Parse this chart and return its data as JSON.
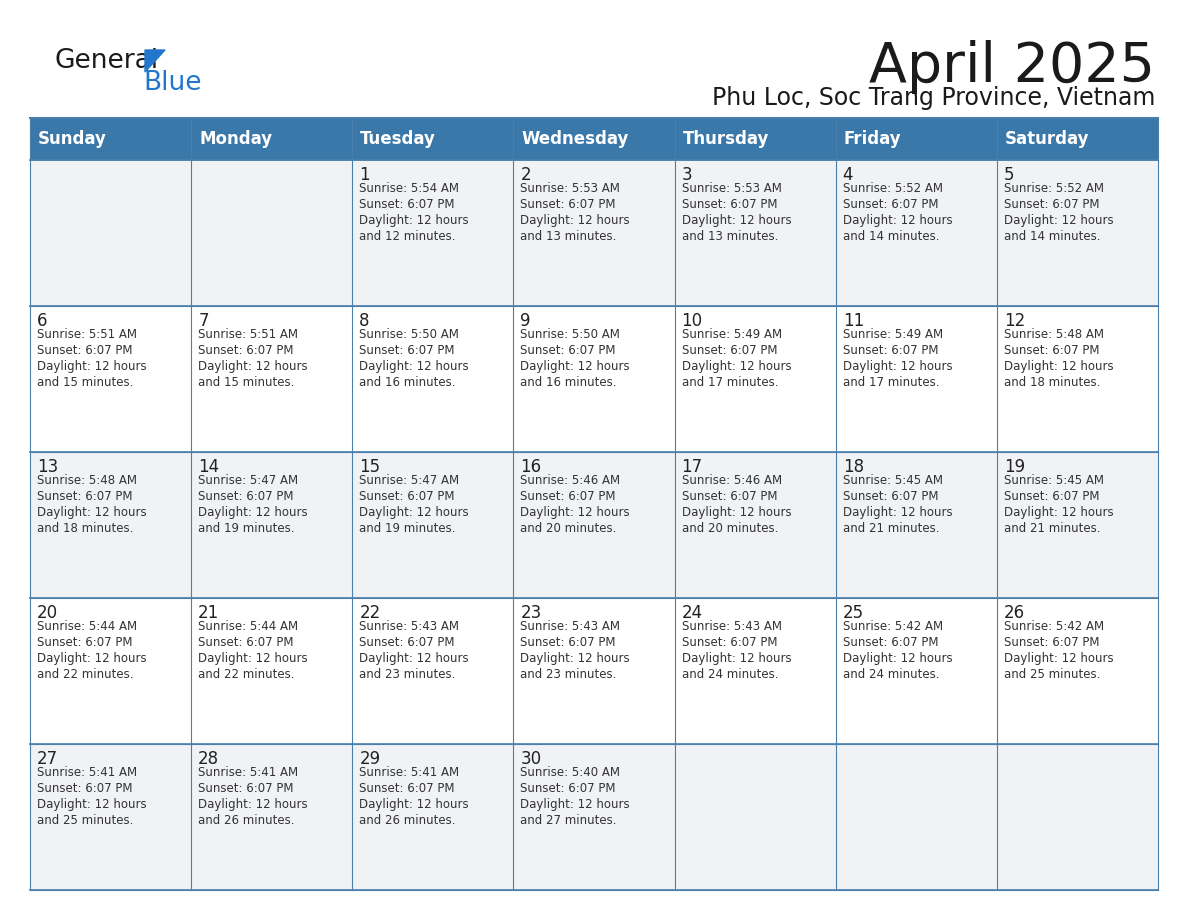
{
  "title": "April 2025",
  "subtitle": "Phu Loc, Soc Trang Province, Vietnam",
  "days_of_week": [
    "Sunday",
    "Monday",
    "Tuesday",
    "Wednesday",
    "Thursday",
    "Friday",
    "Saturday"
  ],
  "header_bg_color": "#3b78aa",
  "header_text_color": "#ffffff",
  "cell_bg_color_light": "#f0f2f5",
  "cell_bg_color_white": "#ffffff",
  "border_color": "#4a7fab",
  "day_number_color": "#222222",
  "text_color": "#333333",
  "title_color": "#1a1a1a",
  "subtitle_color": "#1a1a1a",
  "logo_color_general": "#1a1a1a",
  "logo_color_blue": "#2277cc",
  "logo_triangle_color": "#2277cc",
  "calendar_data": [
    [
      null,
      null,
      {
        "day": 1,
        "sunrise": "5:54 AM",
        "sunset": "6:07 PM",
        "daylight_hours": 12,
        "daylight_minutes": 12
      },
      {
        "day": 2,
        "sunrise": "5:53 AM",
        "sunset": "6:07 PM",
        "daylight_hours": 12,
        "daylight_minutes": 13
      },
      {
        "day": 3,
        "sunrise": "5:53 AM",
        "sunset": "6:07 PM",
        "daylight_hours": 12,
        "daylight_minutes": 13
      },
      {
        "day": 4,
        "sunrise": "5:52 AM",
        "sunset": "6:07 PM",
        "daylight_hours": 12,
        "daylight_minutes": 14
      },
      {
        "day": 5,
        "sunrise": "5:52 AM",
        "sunset": "6:07 PM",
        "daylight_hours": 12,
        "daylight_minutes": 14
      }
    ],
    [
      {
        "day": 6,
        "sunrise": "5:51 AM",
        "sunset": "6:07 PM",
        "daylight_hours": 12,
        "daylight_minutes": 15
      },
      {
        "day": 7,
        "sunrise": "5:51 AM",
        "sunset": "6:07 PM",
        "daylight_hours": 12,
        "daylight_minutes": 15
      },
      {
        "day": 8,
        "sunrise": "5:50 AM",
        "sunset": "6:07 PM",
        "daylight_hours": 12,
        "daylight_minutes": 16
      },
      {
        "day": 9,
        "sunrise": "5:50 AM",
        "sunset": "6:07 PM",
        "daylight_hours": 12,
        "daylight_minutes": 16
      },
      {
        "day": 10,
        "sunrise": "5:49 AM",
        "sunset": "6:07 PM",
        "daylight_hours": 12,
        "daylight_minutes": 17
      },
      {
        "day": 11,
        "sunrise": "5:49 AM",
        "sunset": "6:07 PM",
        "daylight_hours": 12,
        "daylight_minutes": 17
      },
      {
        "day": 12,
        "sunrise": "5:48 AM",
        "sunset": "6:07 PM",
        "daylight_hours": 12,
        "daylight_minutes": 18
      }
    ],
    [
      {
        "day": 13,
        "sunrise": "5:48 AM",
        "sunset": "6:07 PM",
        "daylight_hours": 12,
        "daylight_minutes": 18
      },
      {
        "day": 14,
        "sunrise": "5:47 AM",
        "sunset": "6:07 PM",
        "daylight_hours": 12,
        "daylight_minutes": 19
      },
      {
        "day": 15,
        "sunrise": "5:47 AM",
        "sunset": "6:07 PM",
        "daylight_hours": 12,
        "daylight_minutes": 19
      },
      {
        "day": 16,
        "sunrise": "5:46 AM",
        "sunset": "6:07 PM",
        "daylight_hours": 12,
        "daylight_minutes": 20
      },
      {
        "day": 17,
        "sunrise": "5:46 AM",
        "sunset": "6:07 PM",
        "daylight_hours": 12,
        "daylight_minutes": 20
      },
      {
        "day": 18,
        "sunrise": "5:45 AM",
        "sunset": "6:07 PM",
        "daylight_hours": 12,
        "daylight_minutes": 21
      },
      {
        "day": 19,
        "sunrise": "5:45 AM",
        "sunset": "6:07 PM",
        "daylight_hours": 12,
        "daylight_minutes": 21
      }
    ],
    [
      {
        "day": 20,
        "sunrise": "5:44 AM",
        "sunset": "6:07 PM",
        "daylight_hours": 12,
        "daylight_minutes": 22
      },
      {
        "day": 21,
        "sunrise": "5:44 AM",
        "sunset": "6:07 PM",
        "daylight_hours": 12,
        "daylight_minutes": 22
      },
      {
        "day": 22,
        "sunrise": "5:43 AM",
        "sunset": "6:07 PM",
        "daylight_hours": 12,
        "daylight_minutes": 23
      },
      {
        "day": 23,
        "sunrise": "5:43 AM",
        "sunset": "6:07 PM",
        "daylight_hours": 12,
        "daylight_minutes": 23
      },
      {
        "day": 24,
        "sunrise": "5:43 AM",
        "sunset": "6:07 PM",
        "daylight_hours": 12,
        "daylight_minutes": 24
      },
      {
        "day": 25,
        "sunrise": "5:42 AM",
        "sunset": "6:07 PM",
        "daylight_hours": 12,
        "daylight_minutes": 24
      },
      {
        "day": 26,
        "sunrise": "5:42 AM",
        "sunset": "6:07 PM",
        "daylight_hours": 12,
        "daylight_minutes": 25
      }
    ],
    [
      {
        "day": 27,
        "sunrise": "5:41 AM",
        "sunset": "6:07 PM",
        "daylight_hours": 12,
        "daylight_minutes": 25
      },
      {
        "day": 28,
        "sunrise": "5:41 AM",
        "sunset": "6:07 PM",
        "daylight_hours": 12,
        "daylight_minutes": 26
      },
      {
        "day": 29,
        "sunrise": "5:41 AM",
        "sunset": "6:07 PM",
        "daylight_hours": 12,
        "daylight_minutes": 26
      },
      {
        "day": 30,
        "sunrise": "5:40 AM",
        "sunset": "6:07 PM",
        "daylight_hours": 12,
        "daylight_minutes": 27
      },
      null,
      null,
      null
    ]
  ]
}
